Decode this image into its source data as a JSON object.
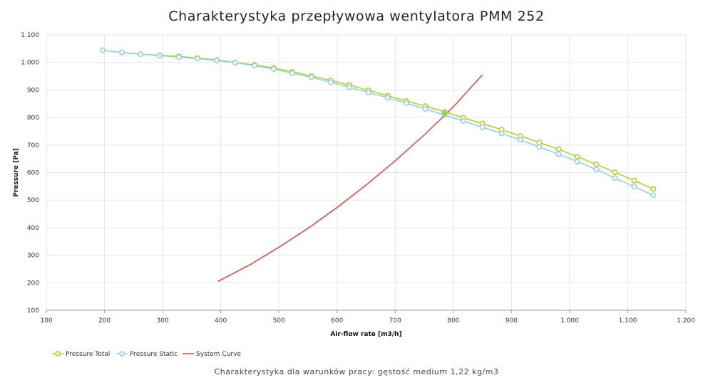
{
  "chart_data": {
    "type": "line",
    "title": "Charakterystyka przepływowa wentylatora PMM 252",
    "xlabel": "Air-flow rate [m3/h]",
    "ylabel": "Pressure [Pa]",
    "xlim": [
      100,
      1200
    ],
    "ylim": [
      100,
      1100
    ],
    "x_ticks": [
      "100",
      "200",
      "300",
      "400",
      "500",
      "600",
      "700",
      "800",
      "900",
      "1.000",
      "1.100",
      "1.200"
    ],
    "y_ticks": [
      "100",
      "200",
      "300",
      "400",
      "500",
      "600",
      "700",
      "800",
      "900",
      "1.000",
      "1.100"
    ],
    "grid": true,
    "legend_position": "bottom-left",
    "series": [
      {
        "name": "Pressure Total",
        "color": "#a8d41c",
        "marker": "circle",
        "x": [
          197,
          230,
          262,
          295,
          328,
          360,
          393,
          425,
          458,
          491,
          523,
          556,
          589,
          621,
          654,
          687,
          719,
          752,
          785,
          817,
          850,
          883,
          915,
          948,
          981,
          1013,
          1046,
          1078,
          1111,
          1144
        ],
        "y": [
          1044,
          1036,
          1030,
          1026,
          1022,
          1016,
          1009,
          1000,
          991,
          980,
          966,
          951,
          935,
          918,
          899,
          879,
          860,
          841,
          821,
          799,
          778,
          756,
          733,
          709,
          685,
          658,
          630,
          601,
          571,
          541
        ]
      },
      {
        "name": "Pressure Static",
        "color": "#8fd0ec",
        "marker": "circle",
        "x": [
          197,
          230,
          262,
          295,
          328,
          360,
          393,
          425,
          458,
          491,
          523,
          556,
          589,
          621,
          654,
          687,
          719,
          752,
          785,
          817,
          850,
          883,
          915,
          948,
          981,
          1013,
          1046,
          1078,
          1111,
          1144
        ],
        "y": [
          1044,
          1036,
          1030,
          1024,
          1019,
          1014,
          1007,
          999,
          988,
          976,
          961,
          946,
          928,
          910,
          891,
          872,
          852,
          831,
          809,
          787,
          765,
          742,
          719,
          693,
          667,
          640,
          611,
          580,
          549,
          518
        ]
      },
      {
        "name": "System Curve",
        "color": "#f23c3c",
        "marker": "none",
        "x": [
          395,
          450,
          500,
          550,
          600,
          650,
          700,
          750,
          785,
          800,
          850
        ],
        "y": [
          205,
          265,
          329,
          398,
          473,
          555,
          643,
          737,
          808,
          839,
          955
        ]
      }
    ],
    "operating_point": {
      "x": 785,
      "y": 815
    }
  },
  "footer_note": "Charakterystyka dla warunków pracy: gęstość medium 1,22 kg/m3"
}
